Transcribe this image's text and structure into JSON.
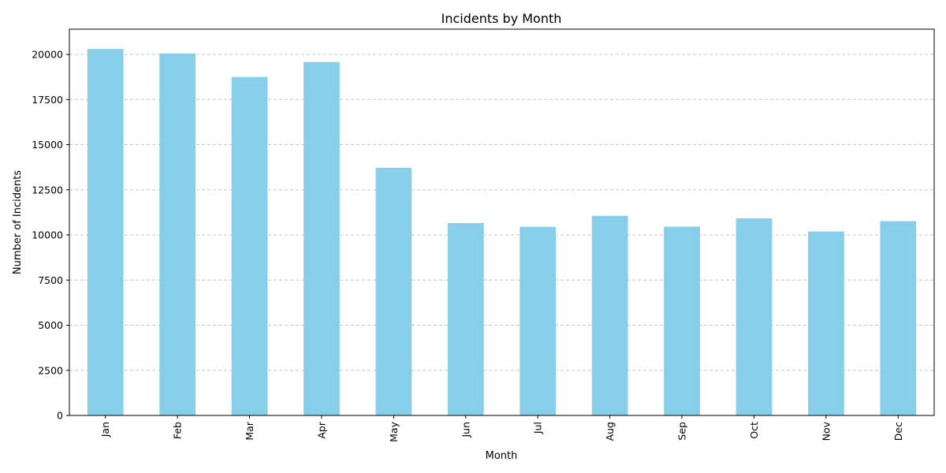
{
  "chart_data": {
    "type": "bar",
    "title": "Incidents by Month",
    "xlabel": "Month",
    "ylabel": "Number of Incidents",
    "categories": [
      "Jan",
      "Feb",
      "Mar",
      "Apr",
      "May",
      "Jun",
      "Jul",
      "Aug",
      "Sep",
      "Oct",
      "Nov",
      "Dec"
    ],
    "values": [
      20300,
      20050,
      18750,
      19580,
      13720,
      10660,
      10450,
      11060,
      10460,
      10920,
      10190,
      10760
    ],
    "ylim": [
      0,
      21400
    ],
    "yticks": [
      0,
      2500,
      5000,
      7500,
      10000,
      12500,
      15000,
      17500,
      20000
    ],
    "ytick_labels": [
      "0",
      "2500",
      "5000",
      "7500",
      "10000",
      "12500",
      "15000",
      "17500",
      "20000"
    ],
    "grid": "y-dashed",
    "bar_color": "#87CEEB",
    "grid_color": "#c8c8c8"
  }
}
